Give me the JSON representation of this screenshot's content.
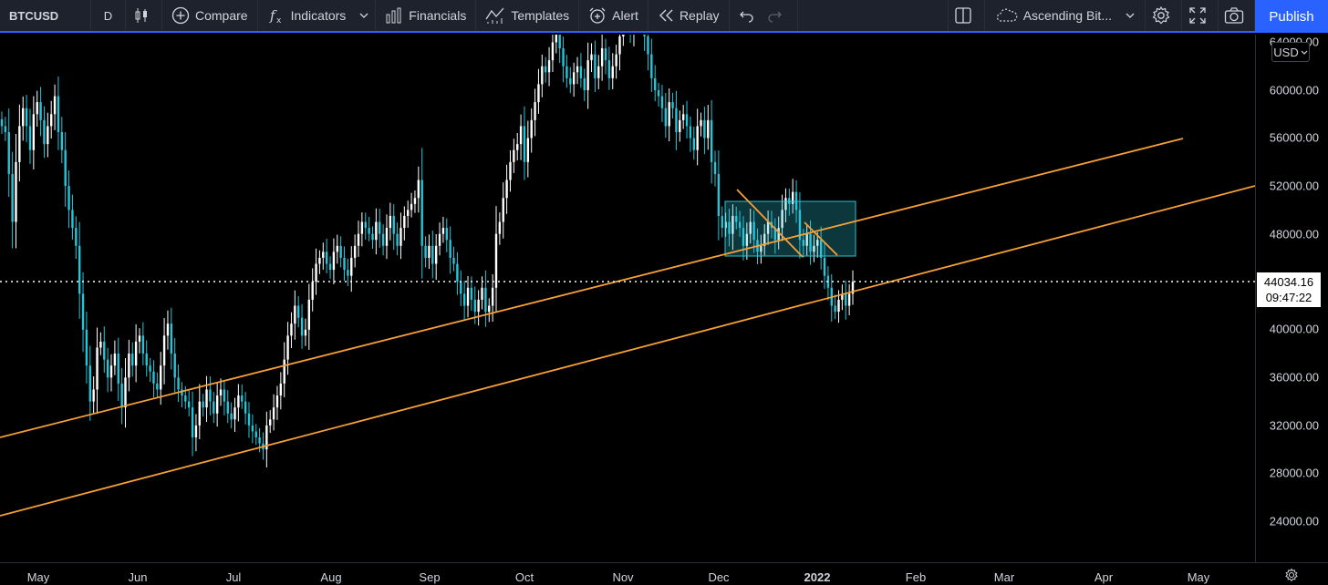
{
  "toolbar": {
    "symbol": "BTCUSD",
    "interval": "D",
    "compare": "Compare",
    "indicators": "Indicators",
    "financials": "Financials",
    "templates": "Templates",
    "alert": "Alert",
    "replay": "Replay",
    "layout_name": "Ascending Bit...",
    "publish": "Publish"
  },
  "price_scale": {
    "currency": "USD",
    "top_partial": "64000.00",
    "labels": [
      "60000.00",
      "56000.00",
      "52000.00",
      "48000.00",
      "40000.00",
      "36000.00",
      "32000.00",
      "28000.00",
      "24000.00"
    ],
    "current_price": "44034.16",
    "countdown": "09:47:22"
  },
  "time_scale": {
    "labels": [
      "May",
      "Jun",
      "Jul",
      "Aug",
      "Sep",
      "Oct",
      "Nov",
      "Dec",
      "2022",
      "Feb",
      "Mar",
      "Apr",
      "May"
    ]
  },
  "chart_data": {
    "type": "candlestick",
    "symbol": "BTCUSD",
    "interval": "D",
    "ylim": [
      21000,
      65000
    ],
    "current_price": 44034.16,
    "colors": {
      "up": "#ffffff",
      "down": "#26c6da",
      "trendline": "#f7a035",
      "box": "#26c6da"
    },
    "x_labels": [
      "May",
      "Jun",
      "Jul",
      "Aug",
      "Sep",
      "Oct",
      "Nov",
      "Dec",
      "2022",
      "Feb",
      "Mar",
      "Apr",
      "May"
    ],
    "closes": [
      57000,
      56500,
      53000,
      49000,
      54000,
      57000,
      58500,
      57000,
      55000,
      58000,
      59000,
      57500,
      55500,
      57000,
      58000,
      59500,
      56500,
      55000,
      52000,
      50000,
      48500,
      47000,
      43000,
      40000,
      37000,
      34000,
      35000,
      38500,
      39000,
      37500,
      36000,
      37000,
      38000,
      35500,
      33500,
      36000,
      38000,
      37000,
      39000,
      39500,
      38000,
      37000,
      36500,
      35500,
      35000,
      37000,
      39500,
      40500,
      38000,
      36000,
      35000,
      34500,
      34000,
      33500,
      31000,
      32000,
      34000,
      33500,
      35000,
      34000,
      33000,
      34500,
      35000,
      34000,
      33000,
      32500,
      33500,
      34500,
      34000,
      33000,
      32000,
      31500,
      31000,
      30500,
      30000,
      32000,
      32500,
      33500,
      34500,
      35500,
      37500,
      39500,
      40500,
      42000,
      41000,
      39500,
      40000,
      42500,
      44000,
      45500,
      46000,
      46500,
      45500,
      45000,
      46500,
      47000,
      46000,
      45000,
      44500,
      46000,
      47000,
      48000,
      49000,
      48500,
      48000,
      47500,
      49000,
      48000,
      47000,
      48500,
      49500,
      48000,
      47000,
      48500,
      49500,
      50000,
      50500,
      51000,
      52500,
      47000,
      46000,
      47000,
      45500,
      47000,
      48000,
      48500,
      47500,
      46000,
      45500,
      44000,
      43000,
      42000,
      43500,
      42500,
      41500,
      42500,
      43500,
      41500,
      42000,
      43500,
      48000,
      49000,
      51000,
      52500,
      54000,
      55000,
      55500,
      57000,
      54000,
      56000,
      57500,
      59000,
      60500,
      62000,
      61500,
      62500,
      64000,
      65000,
      63500,
      62000,
      61000,
      60500,
      61500,
      62000,
      61000,
      60000,
      62500,
      63000,
      61000,
      62000,
      63500,
      62500,
      61000,
      62000,
      63000,
      64500,
      65500,
      66000,
      65000,
      66500,
      67000,
      66000,
      64500,
      63000,
      61000,
      60000,
      59500,
      58500,
      57000,
      59000,
      58500,
      56500,
      57500,
      58000,
      57000,
      56000,
      55000,
      57000,
      57500,
      56000,
      57500,
      54000,
      53000,
      49500,
      48500,
      49000,
      48000,
      49500,
      49000,
      48500,
      47000,
      48000,
      49000,
      47500,
      46500,
      47000,
      48000,
      49000,
      48500,
      47500,
      48500,
      50000,
      51000,
      50500,
      51500,
      50000,
      47500,
      47000,
      48000,
      46500,
      47000,
      47500,
      46000,
      44500,
      43500,
      42000,
      41500,
      42500,
      43000,
      42000,
      43000,
      44000
    ]
  }
}
